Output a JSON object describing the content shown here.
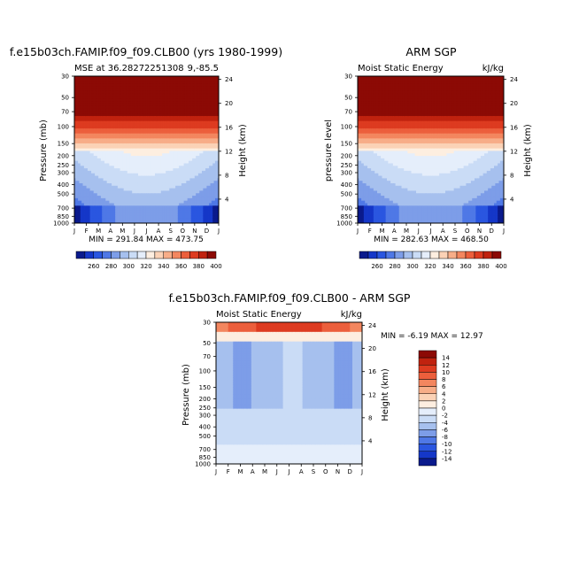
{
  "chart_data": [
    {
      "type": "heatmap",
      "title": "f.e15b03ch.FAMIP.f09_f09.CLB00 (yrs 1980-1999)",
      "subtitle_left": "MSE at 36.28272251308",
      "subtitle_right": "9,-85.5",
      "ylabel": "Pressure (mb)",
      "ylabel_right": "Height (km)",
      "months": [
        "J",
        "F",
        "M",
        "A",
        "M",
        "J",
        "J",
        "A",
        "S",
        "O",
        "N",
        "D",
        "J"
      ],
      "pressure_ticks": [
        "30",
        "50",
        "70",
        "100",
        "150",
        "200",
        "250",
        "300",
        "400",
        "500",
        "700",
        "850",
        "1000"
      ],
      "height_ticks": [
        "24",
        "20",
        "16",
        "12",
        "8",
        "4"
      ],
      "stats": "MIN = 291.84   MAX = 473.75",
      "scale": "log-pressure",
      "mid_column": [
        2,
        4,
        4,
        4,
        5,
        6,
        6,
        6,
        5,
        4,
        4,
        4,
        2
      ],
      "low_column": [
        0,
        1,
        2,
        3,
        4,
        5,
        5,
        5,
        4,
        3,
        2,
        1,
        0
      ]
    },
    {
      "type": "heatmap",
      "title": "ARM SGP",
      "subtitle_left": "Moist Static Energy",
      "subtitle_right": "kJ/kg",
      "ylabel": "pressure  level",
      "ylabel_right": "Height (km)",
      "months": [
        "J",
        "F",
        "M",
        "A",
        "M",
        "J",
        "J",
        "A",
        "S",
        "O",
        "N",
        "D",
        "J"
      ],
      "pressure_ticks": [
        "30",
        "50",
        "70",
        "100",
        "150",
        "200",
        "250",
        "300",
        "400",
        "500",
        "700",
        "850",
        "1000"
      ],
      "height_ticks": [
        "24",
        "20",
        "16",
        "12",
        "8",
        "4"
      ],
      "stats": "MIN = 282.63   MAX = 468.50",
      "scale": "log-pressure",
      "mid_column": [
        2,
        4,
        4,
        4,
        5,
        6,
        6,
        6,
        5,
        4,
        4,
        4,
        2
      ],
      "low_column": [
        0,
        1,
        2,
        3,
        4,
        5,
        6,
        5,
        4,
        3,
        2,
        1,
        0
      ]
    },
    {
      "type": "heatmap",
      "title": "f.e15b03ch.FAMIP.f09_f09.CLB00 - ARM SGP",
      "subtitle_left": "Moist Static Energy",
      "subtitle_right": "kJ/kg",
      "ylabel": "Pressure (mb)",
      "ylabel_right": "Height (km)",
      "months": [
        "J",
        "F",
        "M",
        "A",
        "M",
        "J",
        "J",
        "A",
        "S",
        "O",
        "N",
        "D",
        "J"
      ],
      "pressure_ticks": [
        "30",
        "50",
        "70",
        "100",
        "150",
        "200",
        "250",
        "300",
        "400",
        "500",
        "700",
        "850",
        "1000"
      ],
      "height_ticks": [
        "24",
        "20",
        "16",
        "12",
        "8",
        "4"
      ],
      "stats": "MIN =   -6.19  MAX =   12.97",
      "scale": "log-pressure"
    }
  ],
  "colorbar_top": {
    "labels": [
      "260",
      "280",
      "300",
      "320",
      "340",
      "360",
      "380",
      "400"
    ],
    "colors": [
      "#0a1a8c",
      "#1537c8",
      "#2a56e0",
      "#4f78e6",
      "#7d9de8",
      "#a6c0ee",
      "#cadcf6",
      "#e5eefb",
      "#fdeee0",
      "#fbd2b6",
      "#f7ad88",
      "#f3865f",
      "#ec5f3c",
      "#dd3b20",
      "#c0220f",
      "#8c0a05"
    ]
  },
  "colorbar_diff": {
    "labels": [
      "14",
      "12",
      "10",
      "8",
      "6",
      "4",
      "2",
      "0",
      "-2",
      "-4",
      "-6",
      "-8",
      "-10",
      "-12",
      "-14"
    ],
    "colors": [
      "#8c0a05",
      "#c0220f",
      "#dd3b20",
      "#ec5f3c",
      "#f3865f",
      "#f7ad88",
      "#fbd2b6",
      "#fdeee0",
      "#e5eefb",
      "#cadcf6",
      "#a6c0ee",
      "#7d9de8",
      "#4f78e6",
      "#2a56e0",
      "#1537c8",
      "#0a1a8c"
    ]
  }
}
